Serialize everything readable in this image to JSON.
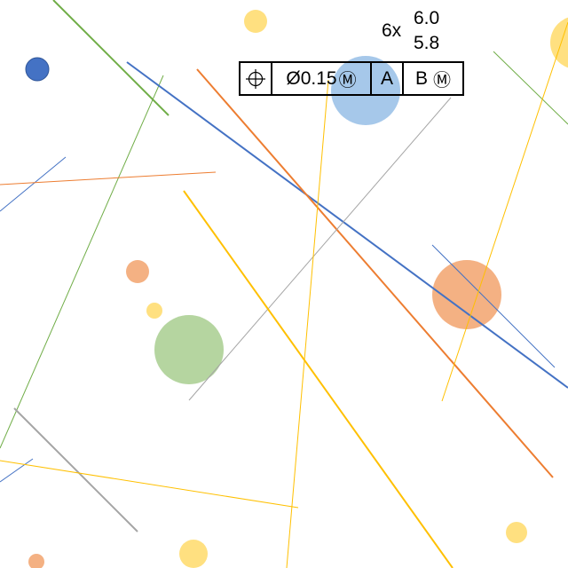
{
  "callout": {
    "count": "6x",
    "size_upper": "6.0",
    "size_lower": "5.8"
  },
  "feature_control_frame": {
    "symbol_icon": "position-icon",
    "tolerance": "Ø0.15",
    "tolerance_modifier": "Ⓜ",
    "datum_primary": "A",
    "datum_secondary": "B",
    "datum_secondary_modifier": "Ⓜ"
  },
  "colors": {
    "blue": "#4472c4",
    "orange": "#ed7d31",
    "gray": "#a5a5a5",
    "yellow": "#ffc000",
    "green": "#70ad47",
    "light_blue": "#a6c8ea",
    "light_orange": "#f4b183",
    "light_yellow": "#ffe080",
    "light_green": "#b5d5a0"
  }
}
